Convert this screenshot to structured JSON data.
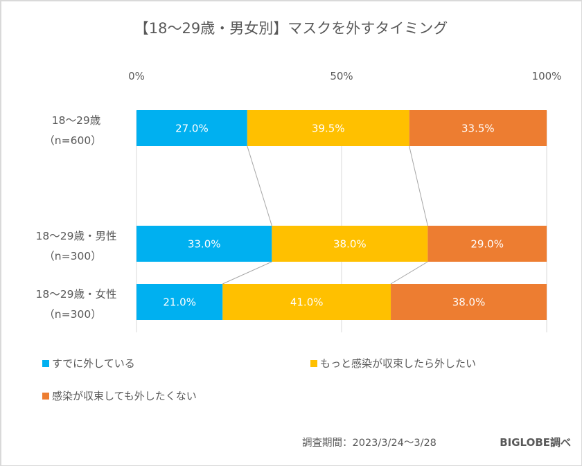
{
  "chart_data": {
    "type": "bar",
    "orientation": "horizontal",
    "stacked": "percent",
    "title": "【18～29歳・男女別】マスクを外すタイミング",
    "categories": [
      {
        "line1": "18～29歳",
        "line2": "（n=600）"
      },
      {
        "line1": "18～29歳・男性",
        "line2": "（n=300）"
      },
      {
        "line1": "18～29歳・女性",
        "line2": "（n=300）"
      }
    ],
    "series": [
      {
        "name": "すでに外している",
        "color": "#00b0f0",
        "values": [
          27.0,
          33.0,
          21.0
        ]
      },
      {
        "name": "もっと感染が収束したら外したい",
        "color": "#ffc000",
        "values": [
          39.5,
          38.0,
          41.0
        ]
      },
      {
        "name": "感染が収束しても外したくない",
        "color": "#ed7d31",
        "values": [
          33.5,
          29.0,
          38.0
        ]
      }
    ],
    "value_format": "{v}%",
    "x_ticks": [
      "0%",
      "50%",
      "100%"
    ],
    "xlim": [
      0,
      100
    ],
    "gridlines": [
      0,
      50,
      100
    ],
    "series_lines": true,
    "legend_position": "bottom",
    "xlabel": "",
    "ylabel": ""
  },
  "footer": {
    "period": "調査期間：2023/3/24～3/28",
    "source": "BIGLOBE調べ"
  }
}
